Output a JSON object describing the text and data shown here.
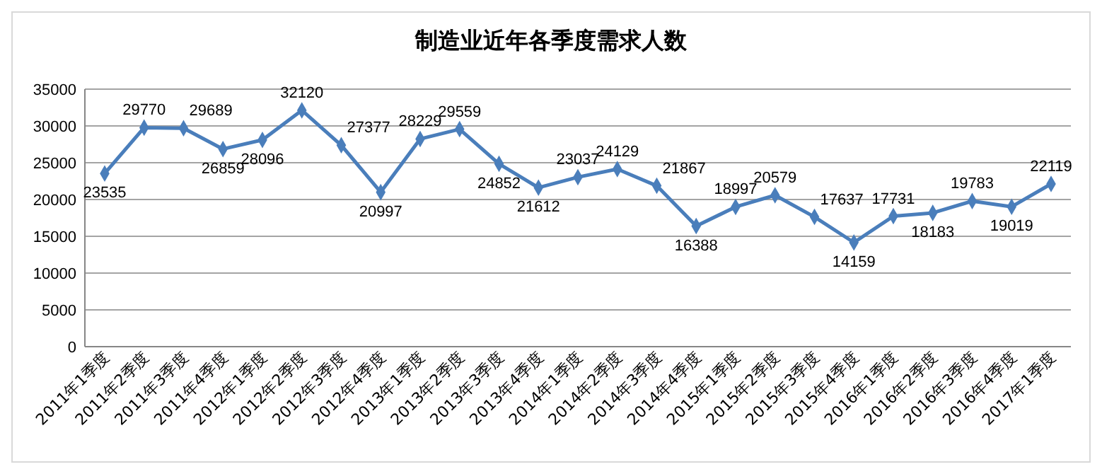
{
  "chart_data": {
    "type": "line",
    "title": "制造业近年各季度需求人数",
    "categories": [
      "2011年1季度",
      "2011年2季度",
      "2011年3季度",
      "2011年4季度",
      "2012年1季度",
      "2012年2季度",
      "2012年3季度",
      "2012年4季度",
      "2013年1季度",
      "2013年2季度",
      "2013年3季度",
      "2013年4季度",
      "2014年1季度",
      "2014年2季度",
      "2014年3季度",
      "2014年4季度",
      "2015年1季度",
      "2015年2季度",
      "2015年3季度",
      "2015年4季度",
      "2016年1季度",
      "2016年2季度",
      "2016年3季度",
      "2016年4季度",
      "2017年1季度"
    ],
    "series": [
      {
        "color": "#4a7ebb",
        "values": [
          23535,
          29770,
          29689,
          26859,
          28096,
          32120,
          27377,
          20997,
          28229,
          29559,
          24852,
          21612,
          23037,
          24129,
          21867,
          16388,
          18997,
          20579,
          17637,
          14159,
          17731,
          18183,
          19783,
          19019,
          22119
        ]
      }
    ],
    "ylim": [
      0,
      35000
    ],
    "yticks": [
      0,
      5000,
      10000,
      15000,
      20000,
      25000,
      30000,
      35000
    ],
    "grid": "y",
    "marker": "diamond",
    "line_style": "solid",
    "data_labels": true
  }
}
